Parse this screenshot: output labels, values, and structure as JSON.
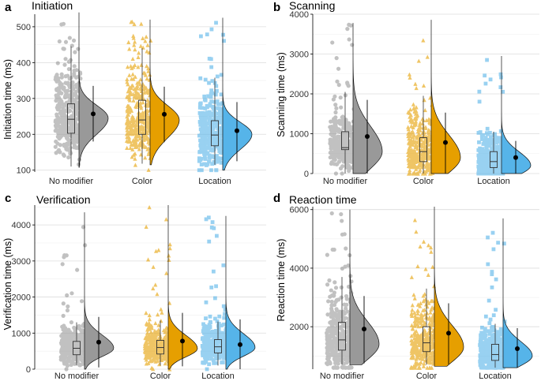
{
  "colors": {
    "No modifier": "#999999",
    "Color": "#E69F00",
    "Location": "#56B4E9",
    "grid": "#e6e6e6",
    "axis": "#000000"
  },
  "chart_data": [
    {
      "type": "raincloud",
      "letter": "a",
      "title": "Initiation",
      "ylabel": "Initiation time (ms)",
      "xlabel": "",
      "categories": [
        "No modifier",
        "Color",
        "Location"
      ],
      "ylim": [
        95,
        535
      ],
      "yticks": [
        100,
        200,
        300,
        400,
        500
      ],
      "series": [
        {
          "name": "No modifier",
          "marker": "circle",
          "box": {
            "whisker_low": 110,
            "q1": 203,
            "median": 242,
            "q3": 285,
            "whisker_high": 445
          },
          "mean": 257,
          "ci": [
            180,
            335
          ],
          "points_range": [
            100,
            530
          ],
          "density_peak": 245,
          "density_spread": 45,
          "density_skew": 0.8,
          "density_range": [
            108,
            540
          ]
        },
        {
          "name": "Color",
          "marker": "triangle",
          "box": {
            "whisker_low": 118,
            "q1": 200,
            "median": 240,
            "q3": 295,
            "whisker_high": 440
          },
          "mean": 256,
          "ci": [
            178,
            333
          ],
          "points_range": [
            100,
            530
          ],
          "density_peak": 240,
          "density_spread": 50,
          "density_skew": 0.8,
          "density_range": [
            115,
            520
          ]
        },
        {
          "name": "Location",
          "marker": "square",
          "box": {
            "whisker_low": 115,
            "q1": 168,
            "median": 198,
            "q3": 238,
            "whisker_high": 358
          },
          "mean": 210,
          "ci": [
            125,
            290
          ],
          "points_range": [
            100,
            525
          ],
          "density_peak": 200,
          "density_spread": 42,
          "density_skew": 0.8,
          "density_range": [
            100,
            525
          ]
        }
      ]
    },
    {
      "type": "raincloud",
      "letter": "b",
      "title": "Scanning",
      "ylabel": "Scanning time (ms)",
      "xlabel": "",
      "categories": [
        "No modifier",
        "Color",
        "Location"
      ],
      "ylim": [
        0,
        4000
      ],
      "yticks": [
        0,
        1000,
        2000,
        3000,
        4000
      ],
      "series": [
        {
          "name": "No modifier",
          "marker": "circle",
          "box": {
            "whisker_low": 0,
            "q1": 600,
            "median": 650,
            "q3": 1050,
            "whisker_high": 2050
          },
          "mean": 930,
          "ci": [
            0,
            1850
          ],
          "points_range": [
            0,
            3800
          ],
          "density_peak": 550,
          "density_spread": 420,
          "density_skew": 1.5,
          "density_range": [
            0,
            3780
          ]
        },
        {
          "name": "Color",
          "marker": "triangle",
          "box": {
            "whisker_low": 0,
            "q1": 300,
            "median": 550,
            "q3": 900,
            "whisker_high": 1950
          },
          "mean": 780,
          "ci": [
            0,
            1530
          ],
          "points_range": [
            0,
            3900
          ],
          "density_peak": 400,
          "density_spread": 380,
          "density_skew": 1.5,
          "density_range": [
            0,
            3860
          ]
        },
        {
          "name": "Location",
          "marker": "square",
          "box": {
            "whisker_low": 0,
            "q1": 150,
            "median": 300,
            "q3": 550,
            "whisker_high": 1050
          },
          "mean": 400,
          "ci": [
            0,
            820
          ],
          "points_range": [
            0,
            2950
          ],
          "density_peak": 200,
          "density_spread": 230,
          "density_skew": 1.5,
          "density_range": [
            0,
            2950
          ]
        }
      ]
    },
    {
      "type": "raincloud",
      "letter": "c",
      "title": "Verification",
      "ylabel": "Verification time (ms)",
      "xlabel": "",
      "categories": [
        "No modifier",
        "Color",
        "Location"
      ],
      "ylim": [
        0,
        4550
      ],
      "yticks": [
        0,
        1000,
        2000,
        3000,
        4000
      ],
      "series": [
        {
          "name": "No modifier",
          "marker": "circle",
          "box": {
            "whisker_low": 100,
            "q1": 400,
            "median": 580,
            "q3": 770,
            "whisker_high": 1300
          },
          "mean": 750,
          "ci": [
            50,
            1450
          ],
          "points_range": [
            0,
            4350
          ],
          "density_peak": 580,
          "density_spread": 230,
          "density_skew": 1.6,
          "density_range": [
            0,
            4350
          ]
        },
        {
          "name": "Color",
          "marker": "triangle",
          "box": {
            "whisker_low": 100,
            "q1": 420,
            "median": 600,
            "q3": 800,
            "whisker_high": 1350
          },
          "mean": 780,
          "ci": [
            80,
            1560
          ],
          "points_range": [
            0,
            4500
          ],
          "density_peak": 570,
          "density_spread": 230,
          "density_skew": 1.6,
          "density_range": [
            0,
            4550
          ]
        },
        {
          "name": "Location",
          "marker": "square",
          "box": {
            "whisker_low": 100,
            "q1": 450,
            "median": 620,
            "q3": 820,
            "whisker_high": 1320
          },
          "mean": 680,
          "ci": [
            0,
            1380
          ],
          "points_range": [
            0,
            4250
          ],
          "density_peak": 600,
          "density_spread": 240,
          "density_skew": 1.6,
          "density_range": [
            0,
            4250
          ]
        }
      ]
    },
    {
      "type": "raincloud",
      "letter": "d",
      "title": "Reaction time",
      "ylabel": "Reaction time (ms)",
      "xlabel": "",
      "categories": [
        "No modifier",
        "Color",
        "Location"
      ],
      "ylim": [
        550,
        6100
      ],
      "yticks": [
        2000,
        4000,
        6000
      ],
      "series": [
        {
          "name": "No modifier",
          "marker": "circle",
          "box": {
            "whisker_low": 700,
            "q1": 1200,
            "median": 1550,
            "q3": 2150,
            "whisker_high": 3700
          },
          "mean": 1920,
          "ci": [
            750,
            3050
          ],
          "points_range": [
            600,
            6000
          ],
          "density_peak": 1400,
          "density_spread": 520,
          "density_skew": 1.5,
          "density_range": [
            700,
            6000
          ]
        },
        {
          "name": "Color",
          "marker": "triangle",
          "box": {
            "whisker_low": 700,
            "q1": 1150,
            "median": 1450,
            "q3": 2000,
            "whisker_high": 3300
          },
          "mean": 1780,
          "ci": [
            720,
            2800
          ],
          "points_range": [
            600,
            6100
          ],
          "density_peak": 1300,
          "density_spread": 500,
          "density_skew": 1.5,
          "density_range": [
            650,
            6100
          ]
        },
        {
          "name": "Location",
          "marker": "square",
          "box": {
            "whisker_low": 600,
            "q1": 850,
            "median": 1050,
            "q3": 1400,
            "whisker_high": 2100
          },
          "mean": 1250,
          "ci": [
            600,
            1950
          ],
          "points_range": [
            600,
            5700
          ],
          "density_peak": 1000,
          "density_spread": 330,
          "density_skew": 1.5,
          "density_range": [
            600,
            5700
          ]
        }
      ]
    }
  ]
}
